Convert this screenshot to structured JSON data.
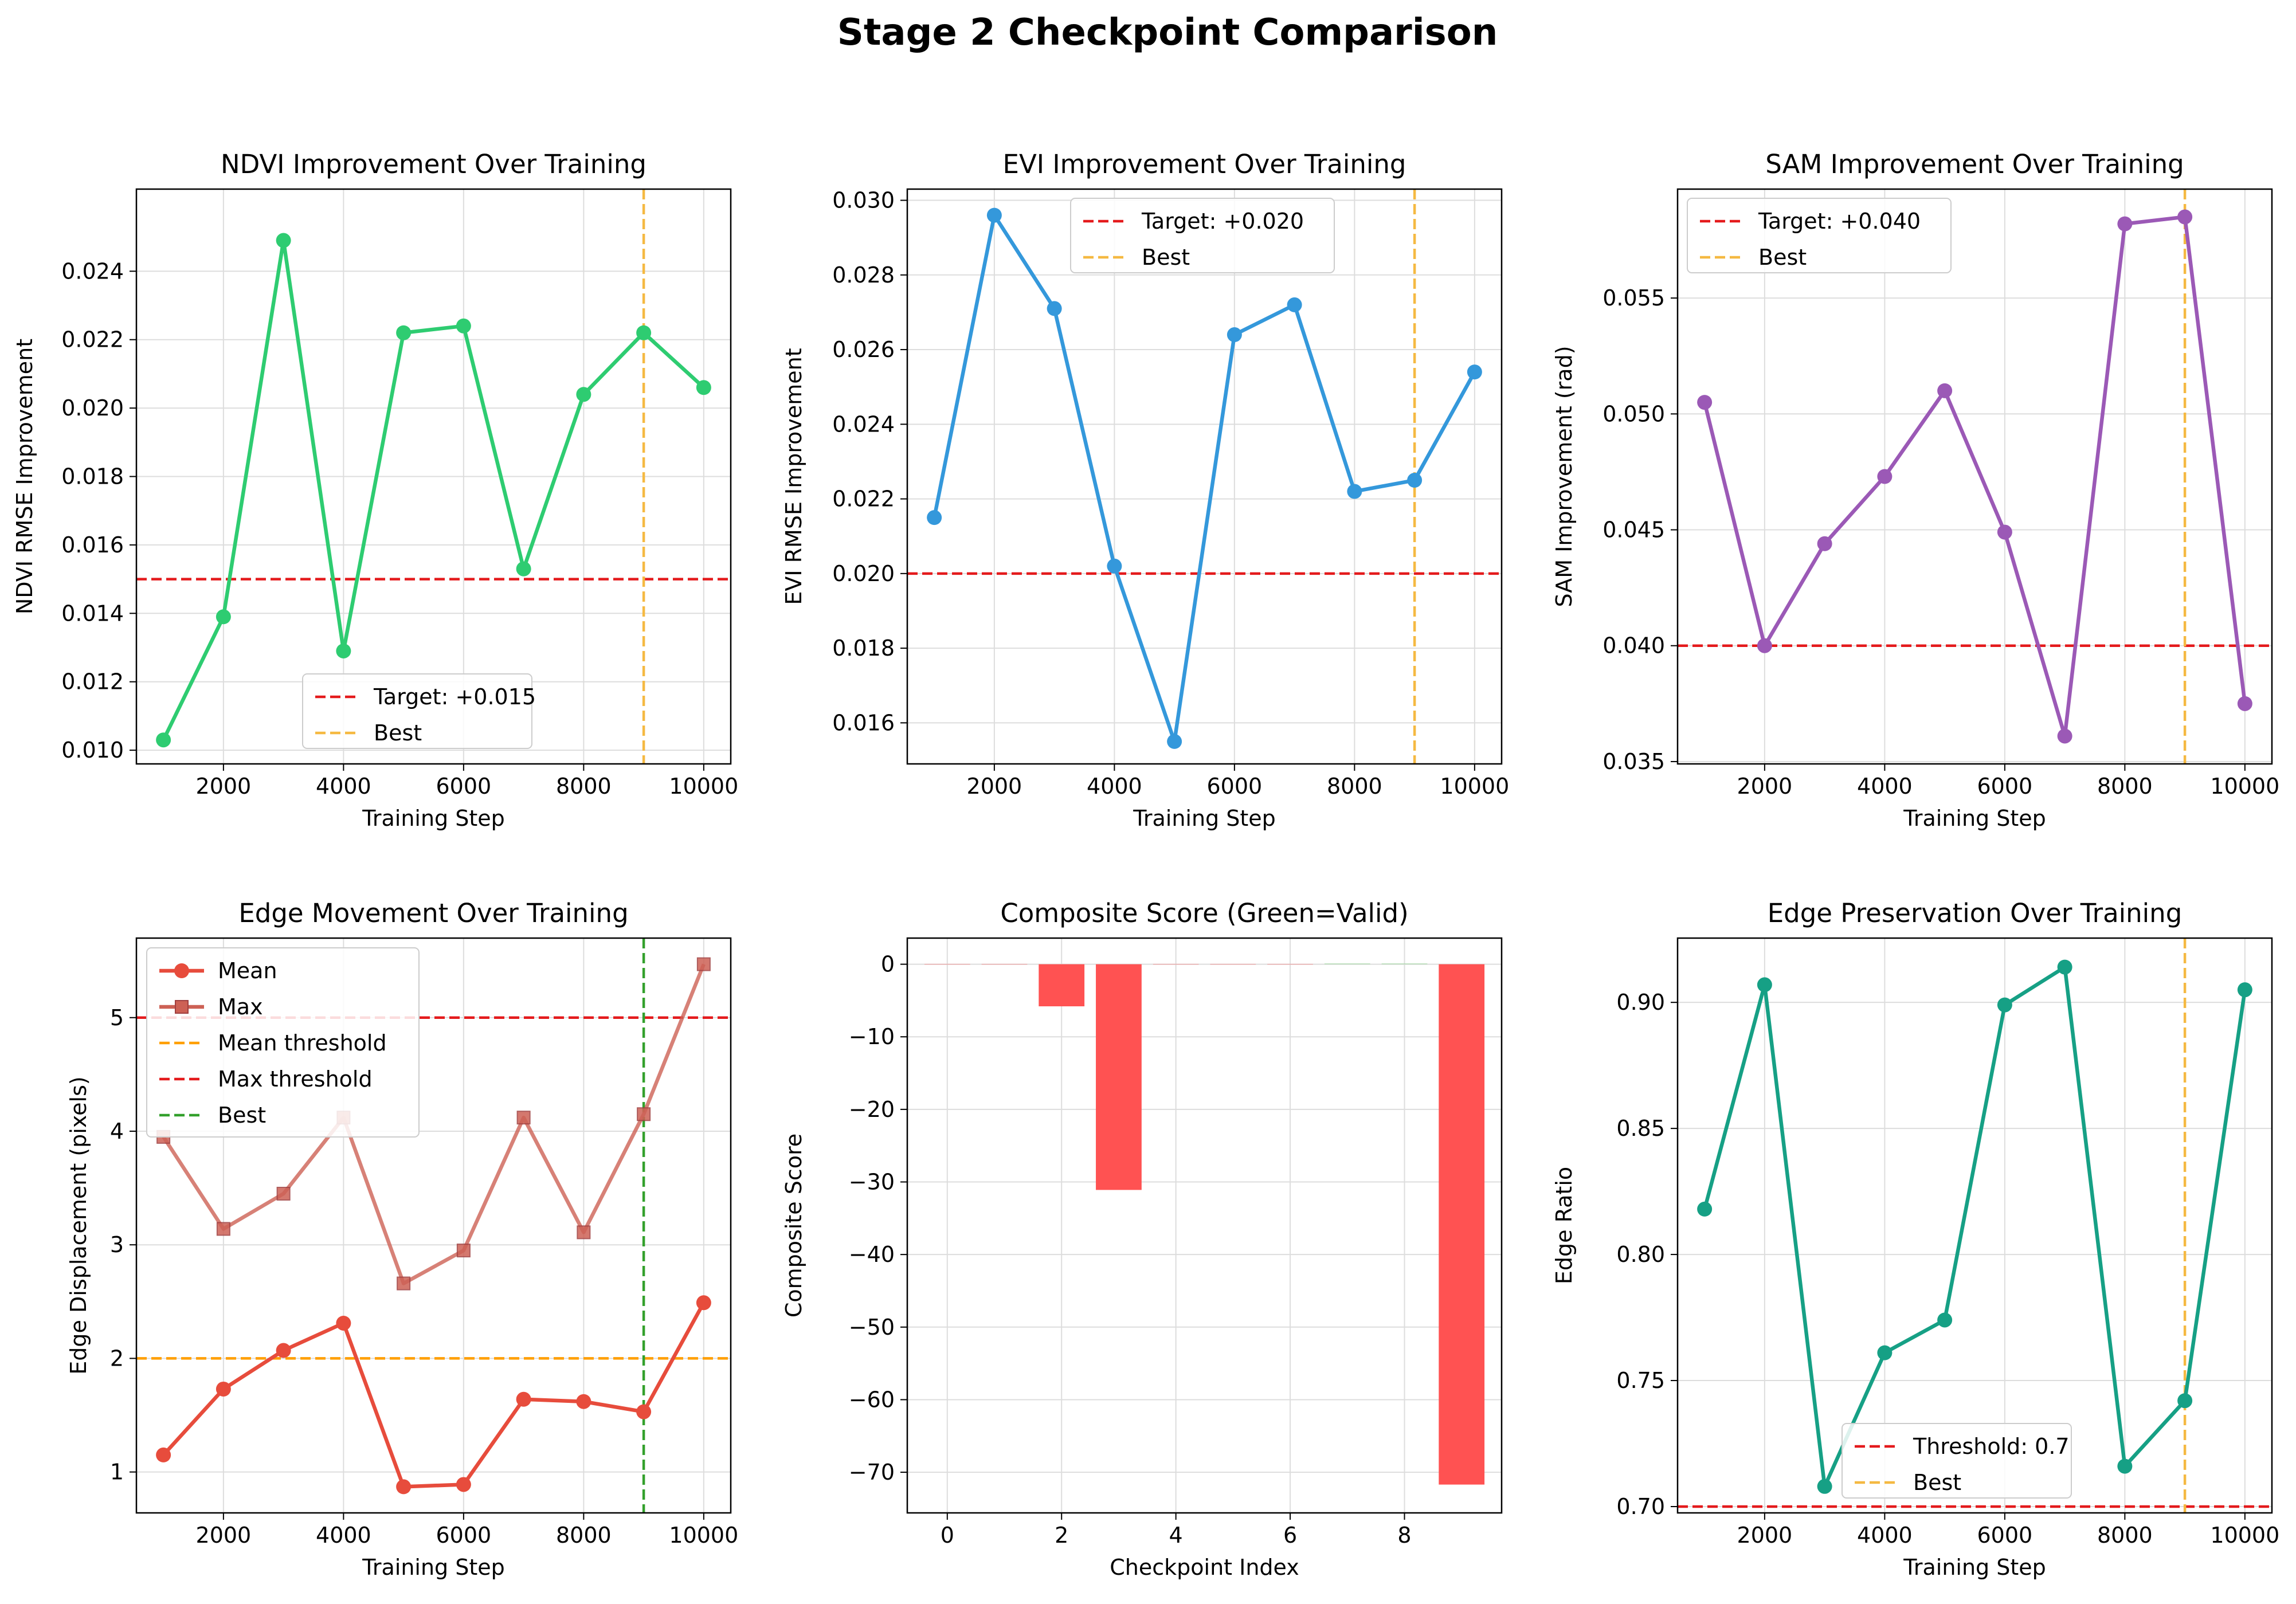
{
  "figure": {
    "title": "Stage 2 Checkpoint Comparison"
  },
  "chart_data": [
    {
      "id": "ndvi",
      "type": "line",
      "title": "NDVI Improvement Over Training",
      "xlabel": "Training Step",
      "ylabel": "NDVI RMSE Improvement",
      "xlim": [
        550,
        10450
      ],
      "ylim": [
        0.0096,
        0.0264
      ],
      "xticks": [
        2000,
        4000,
        6000,
        8000,
        10000
      ],
      "yticks": [
        0.01,
        0.012,
        0.014,
        0.016,
        0.018,
        0.02,
        0.022,
        0.024
      ],
      "ytick_labels": [
        "0.010",
        "0.012",
        "0.014",
        "0.016",
        "0.018",
        "0.020",
        "0.022",
        "0.024"
      ],
      "grid": true,
      "legend_position": "lower-center",
      "series": [
        {
          "x": [
            1000,
            2000,
            3000,
            4000,
            5000,
            6000,
            7000,
            8000,
            9000,
            10000
          ],
          "values": [
            0.0103,
            0.0139,
            0.0249,
            0.0129,
            0.0222,
            0.0224,
            0.0153,
            0.0204,
            0.0222,
            0.0206
          ],
          "color": "#2ecc71",
          "marker": "circle"
        }
      ],
      "hlines": [
        {
          "y": 0.015,
          "label": "Target: +0.015",
          "color": "#e41a1c"
        }
      ],
      "vlines": [
        {
          "x": 9000,
          "label": "Best",
          "color": "#f5b942"
        }
      ]
    },
    {
      "id": "evi",
      "type": "line",
      "title": "EVI Improvement Over Training",
      "xlabel": "Training Step",
      "ylabel": "EVI RMSE Improvement",
      "xlim": [
        550,
        10450
      ],
      "ylim": [
        0.0149,
        0.0303
      ],
      "xticks": [
        2000,
        4000,
        6000,
        8000,
        10000
      ],
      "yticks": [
        0.016,
        0.018,
        0.02,
        0.022,
        0.024,
        0.026,
        0.028,
        0.03
      ],
      "ytick_labels": [
        "0.016",
        "0.018",
        "0.020",
        "0.022",
        "0.024",
        "0.026",
        "0.028",
        "0.030"
      ],
      "grid": true,
      "legend_position": "upper-center",
      "series": [
        {
          "x": [
            1000,
            2000,
            3000,
            4000,
            5000,
            6000,
            7000,
            8000,
            9000,
            10000
          ],
          "values": [
            0.0215,
            0.0296,
            0.0271,
            0.0202,
            0.0155,
            0.0264,
            0.0272,
            0.0222,
            0.0225,
            0.0254
          ],
          "color": "#3498db",
          "marker": "circle"
        }
      ],
      "hlines": [
        {
          "y": 0.02,
          "label": "Target: +0.020",
          "color": "#e41a1c"
        }
      ],
      "vlines": [
        {
          "x": 9000,
          "label": "Best",
          "color": "#f5b942"
        }
      ]
    },
    {
      "id": "sam",
      "type": "line",
      "title": "SAM Improvement Over Training",
      "xlabel": "Training Step",
      "ylabel": "SAM Improvement (rad)",
      "xlim": [
        550,
        10450
      ],
      "ylim": [
        0.0349,
        0.0597
      ],
      "xticks": [
        2000,
        4000,
        6000,
        8000,
        10000
      ],
      "yticks": [
        0.035,
        0.04,
        0.045,
        0.05,
        0.055
      ],
      "ytick_labels": [
        "0.035",
        "0.040",
        "0.045",
        "0.050",
        "0.055"
      ],
      "grid": true,
      "legend_position": "upper-left",
      "series": [
        {
          "x": [
            1000,
            2000,
            3000,
            4000,
            5000,
            6000,
            7000,
            8000,
            9000,
            10000
          ],
          "values": [
            0.0505,
            0.04,
            0.0444,
            0.0473,
            0.051,
            0.0449,
            0.0361,
            0.0582,
            0.0585,
            0.0375
          ],
          "color": "#9b59b6",
          "marker": "circle"
        }
      ],
      "hlines": [
        {
          "y": 0.04,
          "label": "Target: +0.040",
          "color": "#e41a1c"
        }
      ],
      "vlines": [
        {
          "x": 9000,
          "label": "Best",
          "color": "#f5b942"
        }
      ]
    },
    {
      "id": "edge_movement",
      "type": "line",
      "title": "Edge Movement Over Training",
      "xlabel": "Training Step",
      "ylabel": "Edge Displacement (pixels)",
      "xlim": [
        550,
        10450
      ],
      "ylim": [
        0.64,
        5.7
      ],
      "xticks": [
        2000,
        4000,
        6000,
        8000,
        10000
      ],
      "yticks": [
        1,
        2,
        3,
        4,
        5
      ],
      "ytick_labels": [
        "1",
        "2",
        "3",
        "4",
        "5"
      ],
      "grid": true,
      "legend_position": "upper-left",
      "series": [
        {
          "name": "Mean",
          "x": [
            1000,
            2000,
            3000,
            4000,
            5000,
            6000,
            7000,
            8000,
            9000,
            10000
          ],
          "values": [
            1.15,
            1.73,
            2.07,
            2.31,
            0.87,
            0.89,
            1.64,
            1.62,
            1.53,
            2.49
          ],
          "color": "#e74c3c",
          "marker": "circle"
        },
        {
          "name": "Max",
          "x": [
            1000,
            2000,
            3000,
            4000,
            5000,
            6000,
            7000,
            8000,
            9000,
            10000
          ],
          "values": [
            3.95,
            3.14,
            3.45,
            4.12,
            2.66,
            2.95,
            4.12,
            3.11,
            4.15,
            5.47
          ],
          "color": "#cd6155",
          "marker": "square"
        }
      ],
      "hlines": [
        {
          "y": 2.0,
          "label": "Mean threshold",
          "color": "#ff9f00"
        },
        {
          "y": 5.0,
          "label": "Max threshold",
          "color": "#e41a1c"
        }
      ],
      "vlines": [
        {
          "x": 9000,
          "label": "Best",
          "color": "#33a02c"
        }
      ]
    },
    {
      "id": "composite",
      "type": "bar",
      "title": "Composite Score (Green=Valid)",
      "xlabel": "Checkpoint Index",
      "ylabel": "Composite Score",
      "xlim": [
        -0.7,
        9.7
      ],
      "ylim": [
        -75.6,
        3.6
      ],
      "xticks": [
        0,
        2,
        4,
        6,
        8
      ],
      "yticks": [
        0,
        -10,
        -20,
        -30,
        -40,
        -50,
        -60,
        -70
      ],
      "ytick_labels": [
        "0",
        "−10",
        "−20",
        "−30",
        "−40",
        "−50",
        "−60",
        "−70"
      ],
      "grid": true,
      "categories": [
        0,
        1,
        2,
        3,
        4,
        5,
        6,
        7,
        8,
        9
      ],
      "values": [
        0,
        0,
        -5.8,
        -31.1,
        0,
        0,
        0,
        0.1,
        0.1,
        -71.7
      ],
      "colors": [
        "#ff5252",
        "#ff5252",
        "#ff5252",
        "#ff5252",
        "#ff5252",
        "#ff5252",
        "#ff5252",
        "#a8d8a8",
        "#a8d8a8",
        "#ff5252"
      ]
    },
    {
      "id": "edge_preservation",
      "type": "line",
      "title": "Edge Preservation Over Training",
      "xlabel": "Training Step",
      "ylabel": "Edge Ratio",
      "xlim": [
        550,
        10450
      ],
      "ylim": [
        0.6975,
        0.9255
      ],
      "xticks": [
        2000,
        4000,
        6000,
        8000,
        10000
      ],
      "yticks": [
        0.7,
        0.75,
        0.8,
        0.85,
        0.9
      ],
      "ytick_labels": [
        "0.70",
        "0.75",
        "0.80",
        "0.85",
        "0.90"
      ],
      "grid": true,
      "legend_position": "lower-center",
      "series": [
        {
          "x": [
            1000,
            2000,
            3000,
            4000,
            5000,
            6000,
            7000,
            8000,
            9000,
            10000
          ],
          "values": [
            0.818,
            0.907,
            0.708,
            0.761,
            0.774,
            0.899,
            0.914,
            0.716,
            0.742,
            0.905
          ],
          "color": "#16a085",
          "marker": "circle"
        }
      ],
      "hlines": [
        {
          "y": 0.7,
          "label": "Threshold: 0.7",
          "color": "#e41a1c"
        }
      ],
      "vlines": [
        {
          "x": 9000,
          "label": "Best",
          "color": "#f5b942"
        }
      ]
    }
  ]
}
